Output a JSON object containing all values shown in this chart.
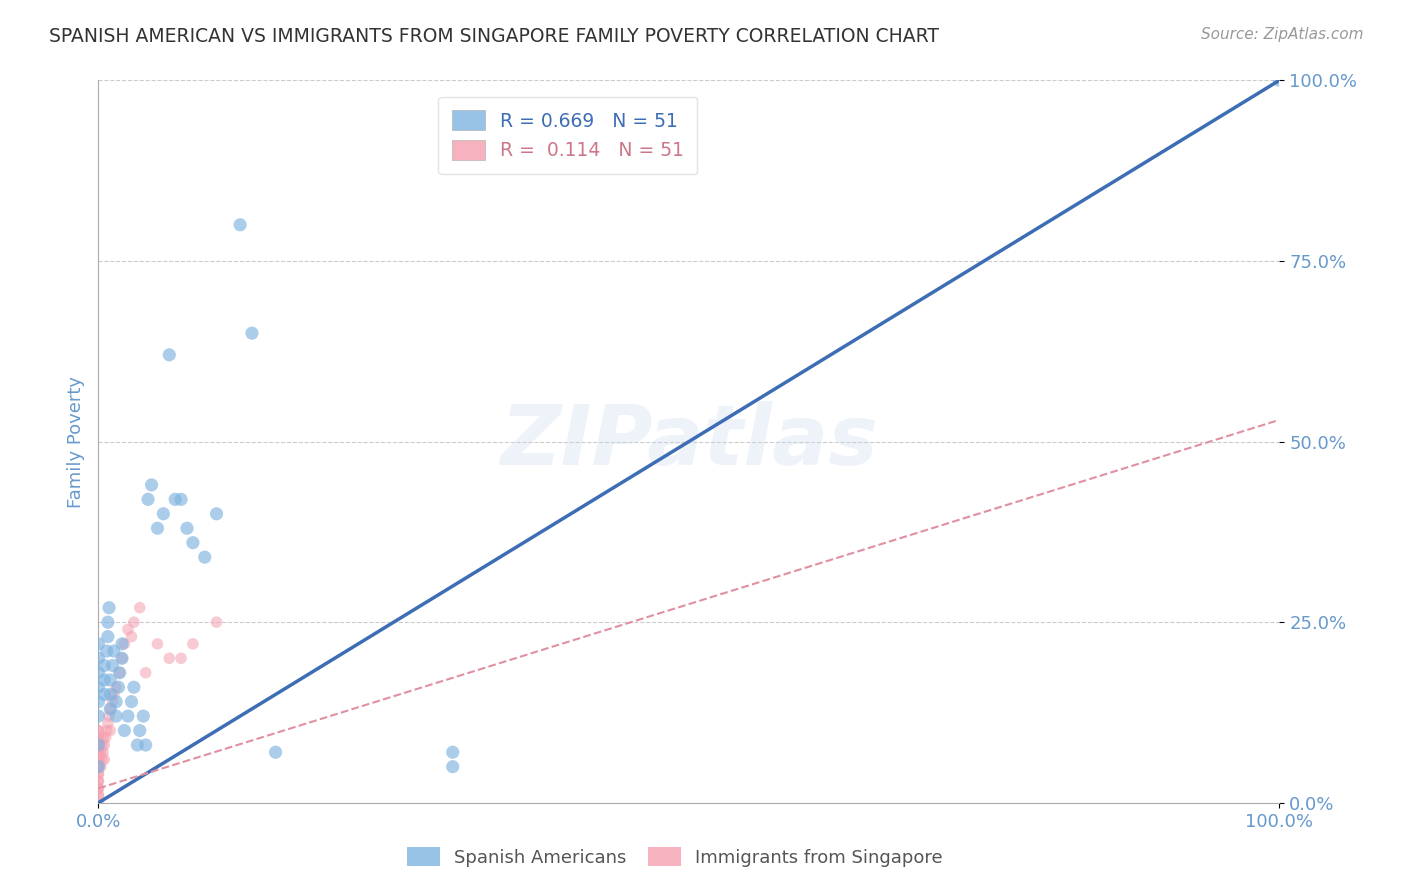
{
  "title": "SPANISH AMERICAN VS IMMIGRANTS FROM SINGAPORE FAMILY POVERTY CORRELATION CHART",
  "source": "Source: ZipAtlas.com",
  "ylabel": "Family Poverty",
  "xlim": [
    0.0,
    1.0
  ],
  "ylim": [
    0.0,
    1.0
  ],
  "xticks": [
    0.0,
    1.0
  ],
  "yticks": [
    0.0,
    0.25,
    0.5,
    0.75,
    1.0
  ],
  "xticklabels": [
    "0.0%",
    "100.0%"
  ],
  "yticklabels_right": [
    "0.0%",
    "25.0%",
    "50.0%",
    "75.0%",
    "100.0%"
  ],
  "blue_R": 0.669,
  "pink_R": 0.114,
  "N": 51,
  "blue_color": "#7EB3E0",
  "pink_color": "#F4A0B0",
  "blue_trend_color": "#3D6DB5",
  "pink_trend_color": "#E090A0",
  "watermark": "ZIPatlas",
  "blue_points_x": [
    0.0,
    0.0,
    0.0,
    0.0,
    0.0,
    0.0,
    0.0,
    0.0,
    0.005,
    0.005,
    0.005,
    0.007,
    0.008,
    0.008,
    0.009,
    0.01,
    0.01,
    0.01,
    0.012,
    0.013,
    0.015,
    0.015,
    0.017,
    0.018,
    0.02,
    0.02,
    0.022,
    0.025,
    0.028,
    0.03,
    0.033,
    0.035,
    0.038,
    0.04,
    0.042,
    0.045,
    0.05,
    0.055,
    0.06,
    0.065,
    0.07,
    0.075,
    0.08,
    0.09,
    0.1,
    0.12,
    0.13,
    0.15,
    0.3,
    0.3,
    1.0
  ],
  "blue_points_y": [
    0.05,
    0.08,
    0.12,
    0.14,
    0.16,
    0.18,
    0.2,
    0.22,
    0.15,
    0.17,
    0.19,
    0.21,
    0.23,
    0.25,
    0.27,
    0.13,
    0.15,
    0.17,
    0.19,
    0.21,
    0.12,
    0.14,
    0.16,
    0.18,
    0.2,
    0.22,
    0.1,
    0.12,
    0.14,
    0.16,
    0.08,
    0.1,
    0.12,
    0.08,
    0.42,
    0.44,
    0.38,
    0.4,
    0.62,
    0.42,
    0.42,
    0.38,
    0.36,
    0.34,
    0.4,
    0.8,
    0.65,
    0.07,
    0.07,
    0.05,
    1.0
  ],
  "pink_points_x": [
    0.0,
    0.0,
    0.0,
    0.0,
    0.0,
    0.0,
    0.0,
    0.0,
    0.0,
    0.0,
    0.0,
    0.0,
    0.0,
    0.0,
    0.0,
    0.0,
    0.0,
    0.0,
    0.0,
    0.0,
    0.0,
    0.002,
    0.002,
    0.003,
    0.003,
    0.004,
    0.004,
    0.005,
    0.005,
    0.006,
    0.007,
    0.008,
    0.009,
    0.01,
    0.01,
    0.012,
    0.013,
    0.015,
    0.018,
    0.02,
    0.022,
    0.025,
    0.028,
    0.03,
    0.035,
    0.04,
    0.05,
    0.06,
    0.07,
    0.08,
    0.1
  ],
  "pink_points_y": [
    0.0,
    0.01,
    0.01,
    0.02,
    0.02,
    0.03,
    0.03,
    0.04,
    0.04,
    0.05,
    0.05,
    0.06,
    0.06,
    0.07,
    0.07,
    0.08,
    0.08,
    0.09,
    0.09,
    0.1,
    0.1,
    0.05,
    0.07,
    0.06,
    0.08,
    0.07,
    0.09,
    0.06,
    0.08,
    0.09,
    0.1,
    0.11,
    0.12,
    0.1,
    0.13,
    0.14,
    0.15,
    0.16,
    0.18,
    0.2,
    0.22,
    0.24,
    0.23,
    0.25,
    0.27,
    0.18,
    0.22,
    0.2,
    0.2,
    0.22,
    0.25
  ],
  "blue_trend_x": [
    0.0,
    1.0
  ],
  "blue_trend_y": [
    0.0,
    1.0
  ],
  "pink_trend_x": [
    0.0,
    1.0
  ],
  "pink_trend_y": [
    0.02,
    0.53
  ],
  "background_color": "#FFFFFF",
  "grid_color": "#CCCCCC",
  "title_color": "#333333",
  "axis_label_color": "#6699CC",
  "tick_color": "#6699CC"
}
